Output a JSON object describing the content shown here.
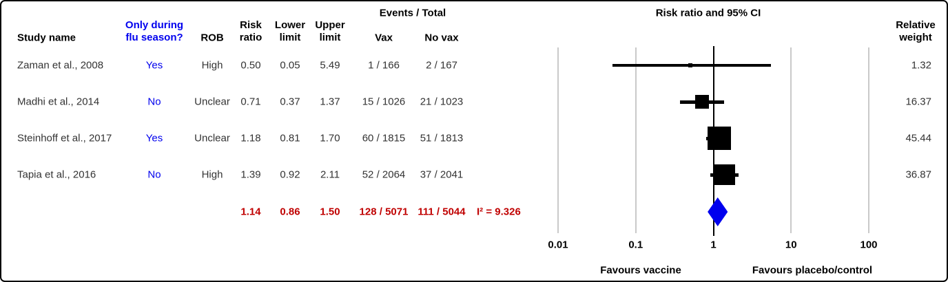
{
  "table": {
    "headers": {
      "study_name": "Study name",
      "flu_season": "Only during\nflu season?",
      "rob": "ROB",
      "risk_ratio": "Risk\nratio",
      "lower_limit": "Lower\nlimit",
      "upper_limit": "Upper\nlimit",
      "events_total": "Events / Total",
      "vax": "Vax",
      "no_vax": "No vax",
      "plot_title": "Risk ratio and 95% CI",
      "relative_weight": "Relative\nweight"
    },
    "rows": [
      {
        "study": "Zaman et al., 2008",
        "flu_season": "Yes",
        "rob": "High",
        "risk_ratio": "0.50",
        "lower": "0.05",
        "upper": "5.49",
        "vax": "1 / 166",
        "no_vax": "2 / 167",
        "weight": "1.32"
      },
      {
        "study": "Madhi et al., 2014",
        "flu_season": "No",
        "rob": "Unclear",
        "risk_ratio": "0.71",
        "lower": "0.37",
        "upper": "1.37",
        "vax": "15 / 1026",
        "no_vax": "21 / 1023",
        "weight": "16.37"
      },
      {
        "study": "Steinhoff et al., 2017",
        "flu_season": "Yes",
        "rob": "Unclear",
        "risk_ratio": "1.18",
        "lower": "0.81",
        "upper": "1.70",
        "vax": "60 / 1815",
        "no_vax": "51 / 1813",
        "weight": "45.44"
      },
      {
        "study": "Tapia et al., 2016",
        "flu_season": "No",
        "rob": "High",
        "risk_ratio": "1.39",
        "lower": "0.92",
        "upper": "2.11",
        "vax": "52 / 2064",
        "no_vax": "37 / 2041",
        "weight": "36.87"
      }
    ],
    "summary": {
      "risk_ratio": "1.14",
      "lower": "0.86",
      "upper": "1.50",
      "vax": "128 / 5071",
      "no_vax": "111 / 5044",
      "i2": "I² = 9.326"
    }
  },
  "chart_data": {
    "type": "forest",
    "title": "Risk ratio and 95% CI",
    "x_scale": "log10",
    "x_range": [
      0.01,
      100
    ],
    "ref_line": 1,
    "x_ticks": [
      {
        "v": 0.01,
        "label": "0.01"
      },
      {
        "v": 0.1,
        "label": "0.1"
      },
      {
        "v": 1,
        "label": "1"
      },
      {
        "v": 10,
        "label": "10"
      },
      {
        "v": 100,
        "label": "100"
      }
    ],
    "studies": [
      {
        "name": "Zaman et al., 2008",
        "rr": 0.5,
        "lower": 0.05,
        "upper": 5.49,
        "weight": 1.32
      },
      {
        "name": "Madhi et al., 2014",
        "rr": 0.71,
        "lower": 0.37,
        "upper": 1.37,
        "weight": 16.37
      },
      {
        "name": "Steinhoff et al., 2017",
        "rr": 1.18,
        "lower": 0.81,
        "upper": 1.7,
        "weight": 45.44
      },
      {
        "name": "Tapia et al., 2016",
        "rr": 1.39,
        "lower": 0.92,
        "upper": 2.11,
        "weight": 36.87
      }
    ],
    "summary": {
      "rr": 1.14,
      "lower": 0.86,
      "upper": 1.5,
      "i_squared": 9.326
    },
    "xlabel_left": "Favours vaccine",
    "xlabel_right": "Favours placebo/control",
    "legend_position": "none",
    "grid": "vertical-log-decades"
  },
  "axis_labels": {
    "favours_left": "Favours vaccine",
    "favours_right": "Favours placebo/control"
  },
  "colors": {
    "accent_blue": "#0000EE",
    "summary_red": "#C00000",
    "grid_gray": "#C9C9C9",
    "marker_black": "#000000",
    "diamond_blue": "#0000EE"
  }
}
